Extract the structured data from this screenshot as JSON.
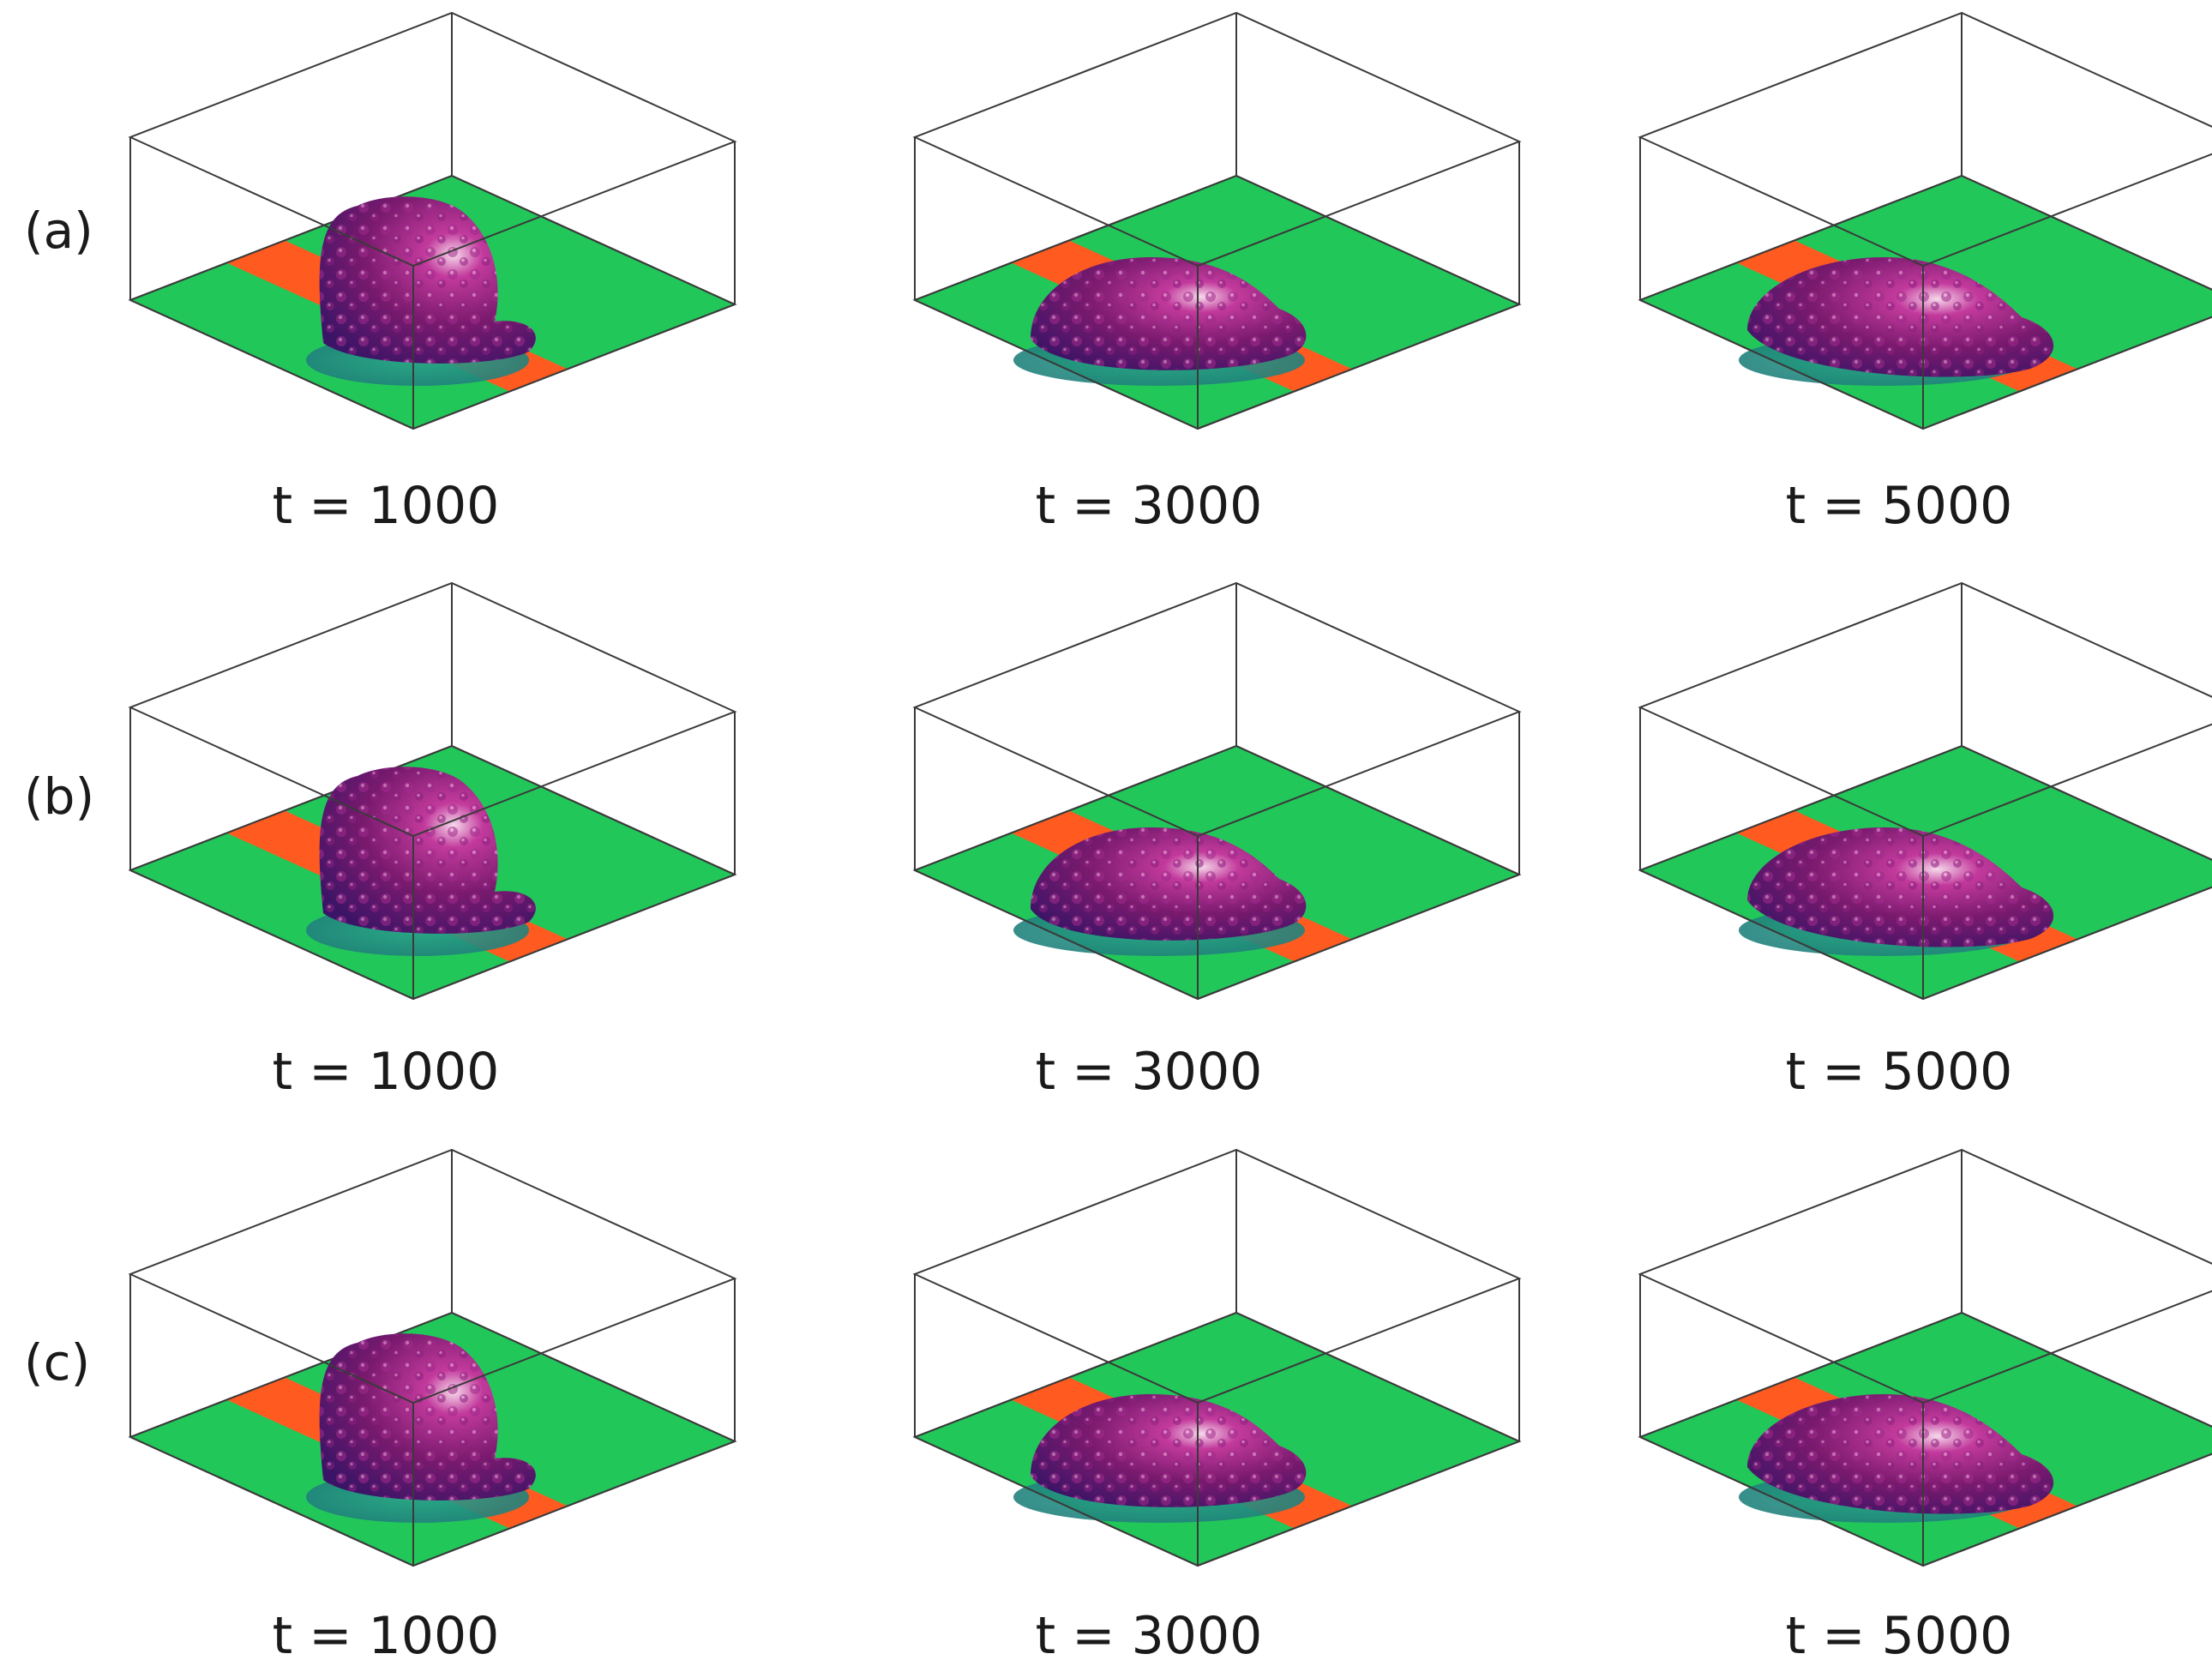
{
  "figure": {
    "rows": [
      {
        "label": "(a)",
        "panels": [
          {
            "time": "t = 1000"
          },
          {
            "time": "t = 3000"
          },
          {
            "time": "t = 5000"
          }
        ]
      },
      {
        "label": "(b)",
        "panels": [
          {
            "time": "t = 1000"
          },
          {
            "time": "t = 3000"
          },
          {
            "time": "t = 5000"
          }
        ]
      },
      {
        "label": "(c)",
        "panels": [
          {
            "time": "t = 1000"
          },
          {
            "time": "t = 3000"
          },
          {
            "time": "t = 5000"
          }
        ]
      }
    ],
    "colors": {
      "substrate_green": "#22c75a",
      "stripe_orange": "#ff5a1f",
      "droplet_purple": "#7a1a6e",
      "droplet_highlight": "#f4d0e6",
      "box_line": "#3a3a3a"
    }
  }
}
